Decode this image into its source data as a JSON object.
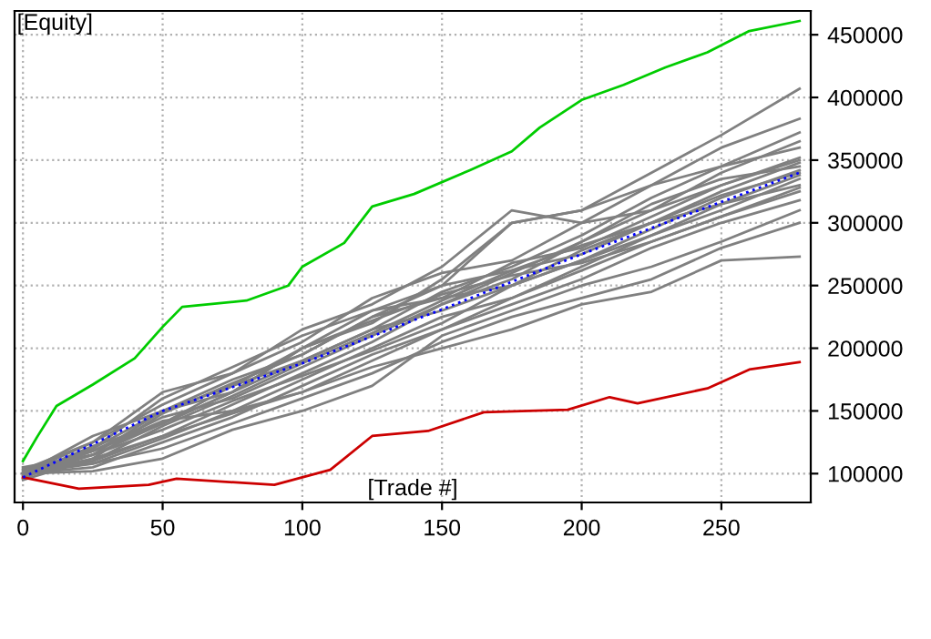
{
  "chart_data": {
    "type": "line",
    "xlabel": "[Trade #]",
    "ylabel": "[Equity]",
    "xlim": [
      -3,
      282
    ],
    "ylim": [
      77000,
      469000
    ],
    "xticks": [
      0,
      50,
      100,
      150,
      200,
      250
    ],
    "yticks": [
      100000,
      150000,
      200000,
      250000,
      300000,
      350000,
      400000,
      450000
    ],
    "grid": true,
    "marker": "none",
    "line_style": "solid",
    "x": [
      0,
      25,
      50,
      75,
      100,
      125,
      150,
      175,
      200,
      225,
      250,
      278
    ],
    "series": [
      {
        "color": "#808080",
        "values": [
          100000,
          120000,
          150000,
          165000,
          200000,
          220000,
          255000,
          300000,
          310000,
          340000,
          370000,
          407000
        ]
      },
      {
        "color": "#808080",
        "values": [
          100000,
          125000,
          155000,
          180000,
          205000,
          240000,
          260000,
          270000,
          300000,
          330000,
          360000,
          383000
        ]
      },
      {
        "color": "#808080",
        "values": [
          100000,
          115000,
          140000,
          170000,
          190000,
          215000,
          245000,
          265000,
          290000,
          320000,
          345000,
          372000
        ]
      },
      {
        "color": "#808080",
        "values": [
          100000,
          118000,
          145000,
          160000,
          185000,
          210000,
          235000,
          260000,
          285000,
          310000,
          340000,
          365000
        ]
      },
      {
        "color": "#808080",
        "values": [
          95000,
          112000,
          148000,
          172000,
          195000,
          225000,
          240000,
          268000,
          280000,
          305000,
          330000,
          352000
        ]
      },
      {
        "color": "#808080",
        "values": [
          98000,
          122000,
          140000,
          165000,
          200000,
          230000,
          250000,
          262000,
          275000,
          300000,
          325000,
          348000
        ]
      },
      {
        "color": "#808080",
        "values": [
          102000,
          110000,
          130000,
          155000,
          180000,
          205000,
          235000,
          255000,
          285000,
          315000,
          335000,
          345000
        ]
      },
      {
        "color": "#808080",
        "values": [
          96000,
          120000,
          160000,
          185000,
          210000,
          230000,
          240000,
          250000,
          270000,
          295000,
          320000,
          342000
        ]
      },
      {
        "color": "#808080",
        "values": [
          104000,
          108000,
          128000,
          150000,
          175000,
          200000,
          225000,
          240000,
          265000,
          290000,
          315000,
          338000
        ]
      },
      {
        "color": "#808080",
        "values": [
          105000,
          115000,
          135000,
          158000,
          178000,
          198000,
          220000,
          250000,
          278000,
          300000,
          315000,
          330000
        ]
      },
      {
        "color": "#808080",
        "values": [
          100000,
          105000,
          125000,
          145000,
          170000,
          195000,
          215000,
          240000,
          262000,
          285000,
          305000,
          325000
        ]
      },
      {
        "color": "#808080",
        "values": [
          100000,
          118000,
          142000,
          150000,
          165000,
          190000,
          215000,
          235000,
          255000,
          280000,
          300000,
          318000
        ]
      },
      {
        "color": "#808080",
        "values": [
          100000,
          108000,
          120000,
          140000,
          160000,
          180000,
          205000,
          225000,
          240000,
          255000,
          280000,
          300000
        ]
      },
      {
        "color": "#808080",
        "values": [
          100000,
          112000,
          130000,
          148000,
          165000,
          185000,
          200000,
          215000,
          235000,
          245000,
          270000,
          273000
        ]
      },
      {
        "color": "#808080",
        "values": [
          103000,
          125000,
          165000,
          180000,
          215000,
          235000,
          265000,
          310000,
          300000,
          310000,
          330000,
          350000
        ]
      },
      {
        "color": "#808080",
        "values": [
          100000,
          102000,
          112000,
          135000,
          150000,
          170000,
          210000,
          230000,
          250000,
          265000,
          285000,
          310000
        ]
      },
      {
        "color": "#808080",
        "values": [
          99000,
          118000,
          140000,
          165000,
          190000,
          215000,
          230000,
          250000,
          270000,
          290000,
          310000,
          335000
        ]
      },
      {
        "color": "#808080",
        "values": [
          100000,
          130000,
          150000,
          175000,
          195000,
          225000,
          250000,
          300000,
          310000,
          330000,
          345000,
          360000
        ]
      },
      {
        "color": "#808080",
        "values": [
          101000,
          110000,
          138000,
          162000,
          188000,
          212000,
          238000,
          262000,
          282000,
          300000,
          322000,
          340000
        ]
      },
      {
        "color": "#808080",
        "values": [
          97000,
          115000,
          150000,
          170000,
          200000,
          222000,
          243000,
          258000,
          268000,
          285000,
          305000,
          328000
        ]
      },
      {
        "color": "#00cc00",
        "x": [
          0,
          5,
          12,
          25,
          40,
          50,
          57,
          80,
          95,
          100,
          115,
          125,
          140,
          160,
          175,
          185,
          200,
          215,
          230,
          245,
          260,
          278
        ],
        "values": [
          110000,
          129000,
          154000,
          171000,
          192000,
          217000,
          233000,
          238000,
          250000,
          265000,
          284000,
          313000,
          323000,
          342000,
          357000,
          376000,
          398000,
          410000,
          424000,
          436000,
          453000,
          461000
        ]
      },
      {
        "color": "#cc0000",
        "x": [
          0,
          20,
          45,
          55,
          90,
          110,
          125,
          145,
          165,
          195,
          210,
          220,
          245,
          260,
          278
        ],
        "values": [
          97000,
          88000,
          91000,
          96000,
          91000,
          103000,
          130000,
          134000,
          149000,
          151000,
          161000,
          156000,
          168000,
          183000,
          189000
        ]
      },
      {
        "color": "#0000ff",
        "line_style": "dotted",
        "x": [
          0,
          50,
          100,
          150,
          200,
          278
        ],
        "values": [
          97000,
          150000,
          188000,
          231000,
          275000,
          340000
        ]
      }
    ]
  }
}
